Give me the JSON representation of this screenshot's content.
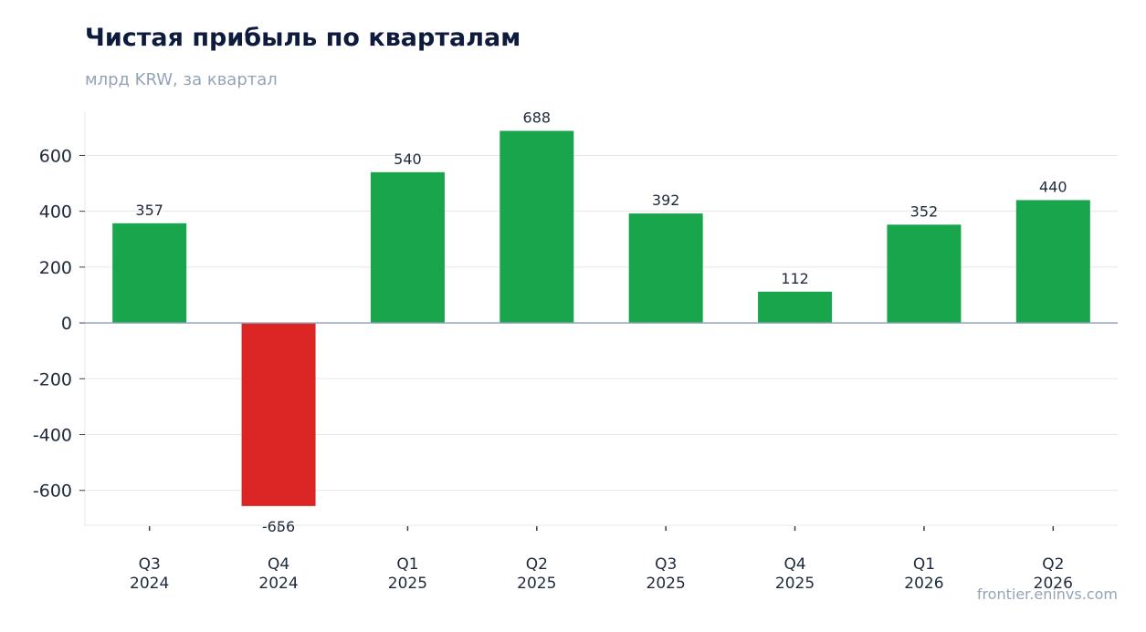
{
  "chart_data": {
    "type": "bar",
    "title": "Чистая прибыль по кварталам",
    "subtitle": "млрд KRW, за квартал",
    "categories": [
      [
        "Q3",
        "2024"
      ],
      [
        "Q4",
        "2024"
      ],
      [
        "Q1",
        "2025"
      ],
      [
        "Q2",
        "2025"
      ],
      [
        "Q3",
        "2025"
      ],
      [
        "Q4",
        "2025"
      ],
      [
        "Q1",
        "2026"
      ],
      [
        "Q2",
        "2026"
      ]
    ],
    "values": [
      357,
      -656,
      540,
      688,
      392,
      112,
      352,
      440
    ],
    "data_labels": [
      "357",
      "-656",
      "540",
      "688",
      "392",
      "112",
      "352",
      "440"
    ],
    "ylim": [
      -725,
      755
    ],
    "yticks": [
      600,
      400,
      200,
      0,
      -200,
      -400,
      -600
    ],
    "ytick_labels": [
      "600",
      "400",
      "200",
      "0",
      "-200",
      "-400",
      "-600"
    ],
    "grid": true,
    "legend": "none",
    "colors": {
      "positive": "#18a54b",
      "negative": "#dc2626",
      "grid": "#e5e7eb",
      "zero_line": "#94a3b8",
      "axis": "#e5e7eb"
    }
  },
  "source": "frontier.eninvs.com"
}
